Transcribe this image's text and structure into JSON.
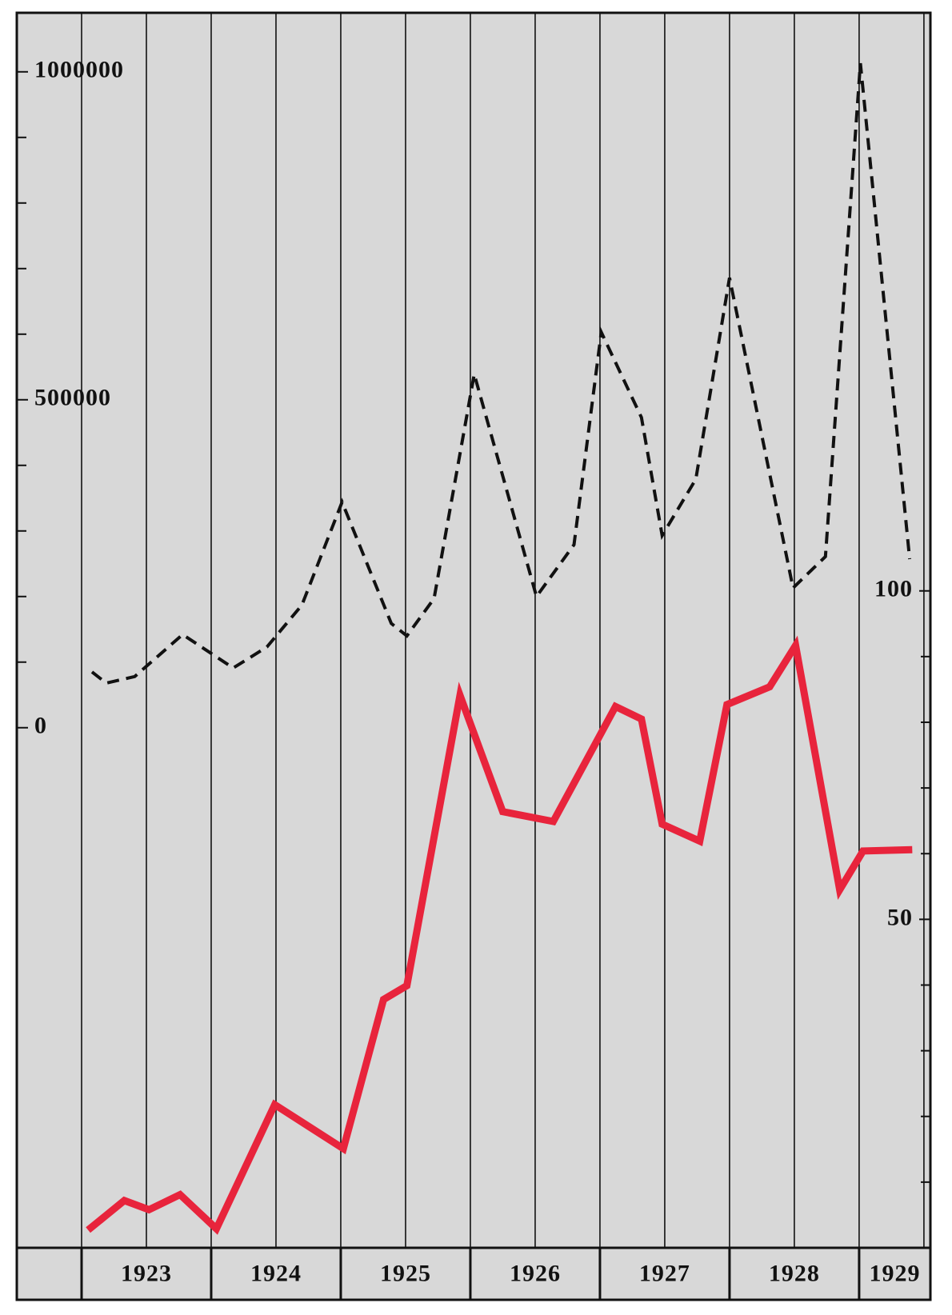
{
  "chart_data": {
    "type": "line",
    "xlim": [
      1922.5,
      1929.55
    ],
    "xticks": [
      1923,
      1924,
      1925,
      1926,
      1927,
      1928,
      1929
    ],
    "xminorticks": [
      1923.5,
      1924.5,
      1925.5,
      1926.5,
      1927.5,
      1928.5,
      1929.5
    ],
    "ylim": [
      -793000,
      1090000
    ],
    "yticks": [
      0,
      500000,
      1000000
    ],
    "yminorticks": [
      100000,
      200000,
      300000,
      400000,
      600000,
      700000,
      800000,
      900000
    ],
    "y2lim": [
      0,
      188
    ],
    "y2ticks": [
      50,
      100
    ],
    "y2minorticks": [
      10,
      20,
      30,
      40,
      60,
      70,
      80,
      90
    ],
    "grid": true,
    "series": [
      {
        "color": "#111111",
        "dashed": true,
        "x": [
          1923.08,
          1923.19,
          1923.41,
          1923.78,
          1924.17,
          1924.43,
          1924.7,
          1925.01,
          1925.39,
          1925.51,
          1925.72,
          1926.03,
          1926.51,
          1926.8,
          1927.01,
          1927.32,
          1927.48,
          1927.74,
          1928.0,
          1928.49,
          1928.74,
          1929.01,
          1929.39
        ],
        "values": [
          85000,
          68000,
          78000,
          142000,
          91000,
          123000,
          187000,
          344000,
          159000,
          140000,
          197000,
          539000,
          200000,
          279000,
          603000,
          473000,
          293000,
          379000,
          686000,
          213000,
          261000,
          1013000,
          257000
        ]
      },
      {
        "color": "#e8243c",
        "axis": "y2",
        "x": [
          1923.05,
          1923.33,
          1923.52,
          1923.76,
          1924.04,
          1924.49,
          1925.02,
          1925.33,
          1925.51,
          1925.92,
          1926.25,
          1926.64,
          1927.12,
          1927.32,
          1927.48,
          1927.77,
          1927.98,
          1928.31,
          1928.51,
          1928.85,
          1929.03,
          1929.41
        ],
        "values": [
          2.7,
          7.2,
          5.8,
          8.1,
          2.9,
          21.8,
          15.1,
          37.8,
          39.9,
          84.1,
          66.4,
          64.9,
          82.4,
          80.5,
          64.5,
          61.9,
          82.7,
          85.4,
          91.7,
          54.5,
          60.4,
          60.6
        ]
      }
    ]
  }
}
